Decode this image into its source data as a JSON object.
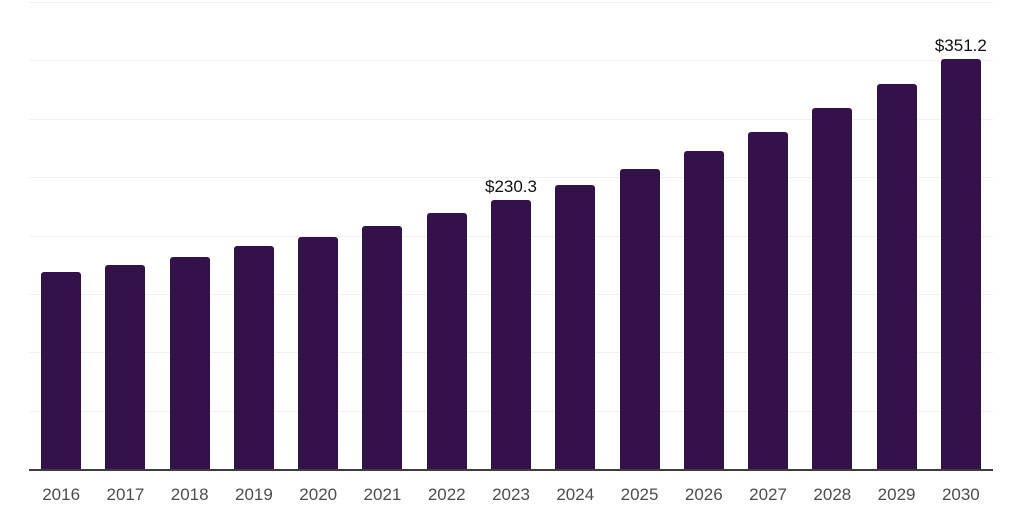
{
  "chart_data": {
    "type": "bar",
    "title": "",
    "xlabel": "",
    "ylabel": "",
    "categories": [
      "2016",
      "2017",
      "2018",
      "2019",
      "2020",
      "2021",
      "2022",
      "2023",
      "2024",
      "2025",
      "2026",
      "2027",
      "2028",
      "2029",
      "2030"
    ],
    "values": [
      168.4,
      174.7,
      181.8,
      190.9,
      198.6,
      208.0,
      219.3,
      230.3,
      243.0,
      257.3,
      272.0,
      288.3,
      309.6,
      329.9,
      351.2
    ],
    "value_labels": [
      "",
      "",
      "",
      "",
      "",
      "",
      "",
      "$230.3",
      "",
      "",
      "",
      "",
      "",
      "",
      "$351.2"
    ],
    "ylim": [
      0,
      400
    ],
    "gridline_step": 50,
    "grid": true,
    "legend_position": "none",
    "bar_color": "#331149",
    "axis_color": "#3d3d3d",
    "gridline_color": "#f1f1f1",
    "tick_label_color": "#4d4d4d",
    "value_label_color": "#111111",
    "background_color": "#ffffff"
  }
}
